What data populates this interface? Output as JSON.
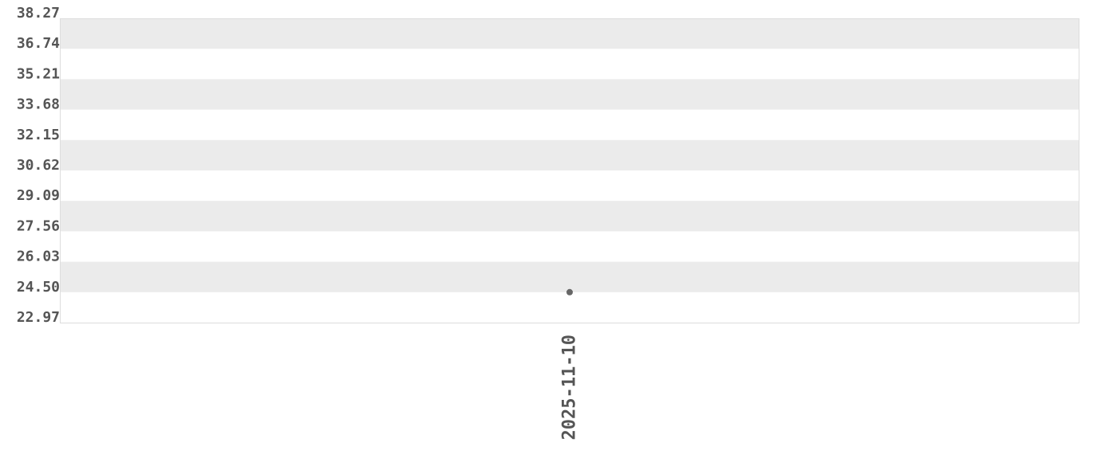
{
  "chart_data": {
    "type": "scatter",
    "title": "",
    "xlabel": "",
    "ylabel": "",
    "categories": [
      "2025-11-10"
    ],
    "series": [
      {
        "values": [
          24.5
        ],
        "color": "#666666"
      }
    ],
    "ylim": [
      22.97,
      38.27
    ],
    "yticks": [
      "38.27",
      "36.74",
      "35.21",
      "33.68",
      "32.15",
      "30.62",
      "29.09",
      "27.56",
      "26.03",
      "24.50",
      "22.97"
    ],
    "grid": "alternating horizontal bands",
    "band_color": "#ebebeb",
    "legend": "none"
  }
}
